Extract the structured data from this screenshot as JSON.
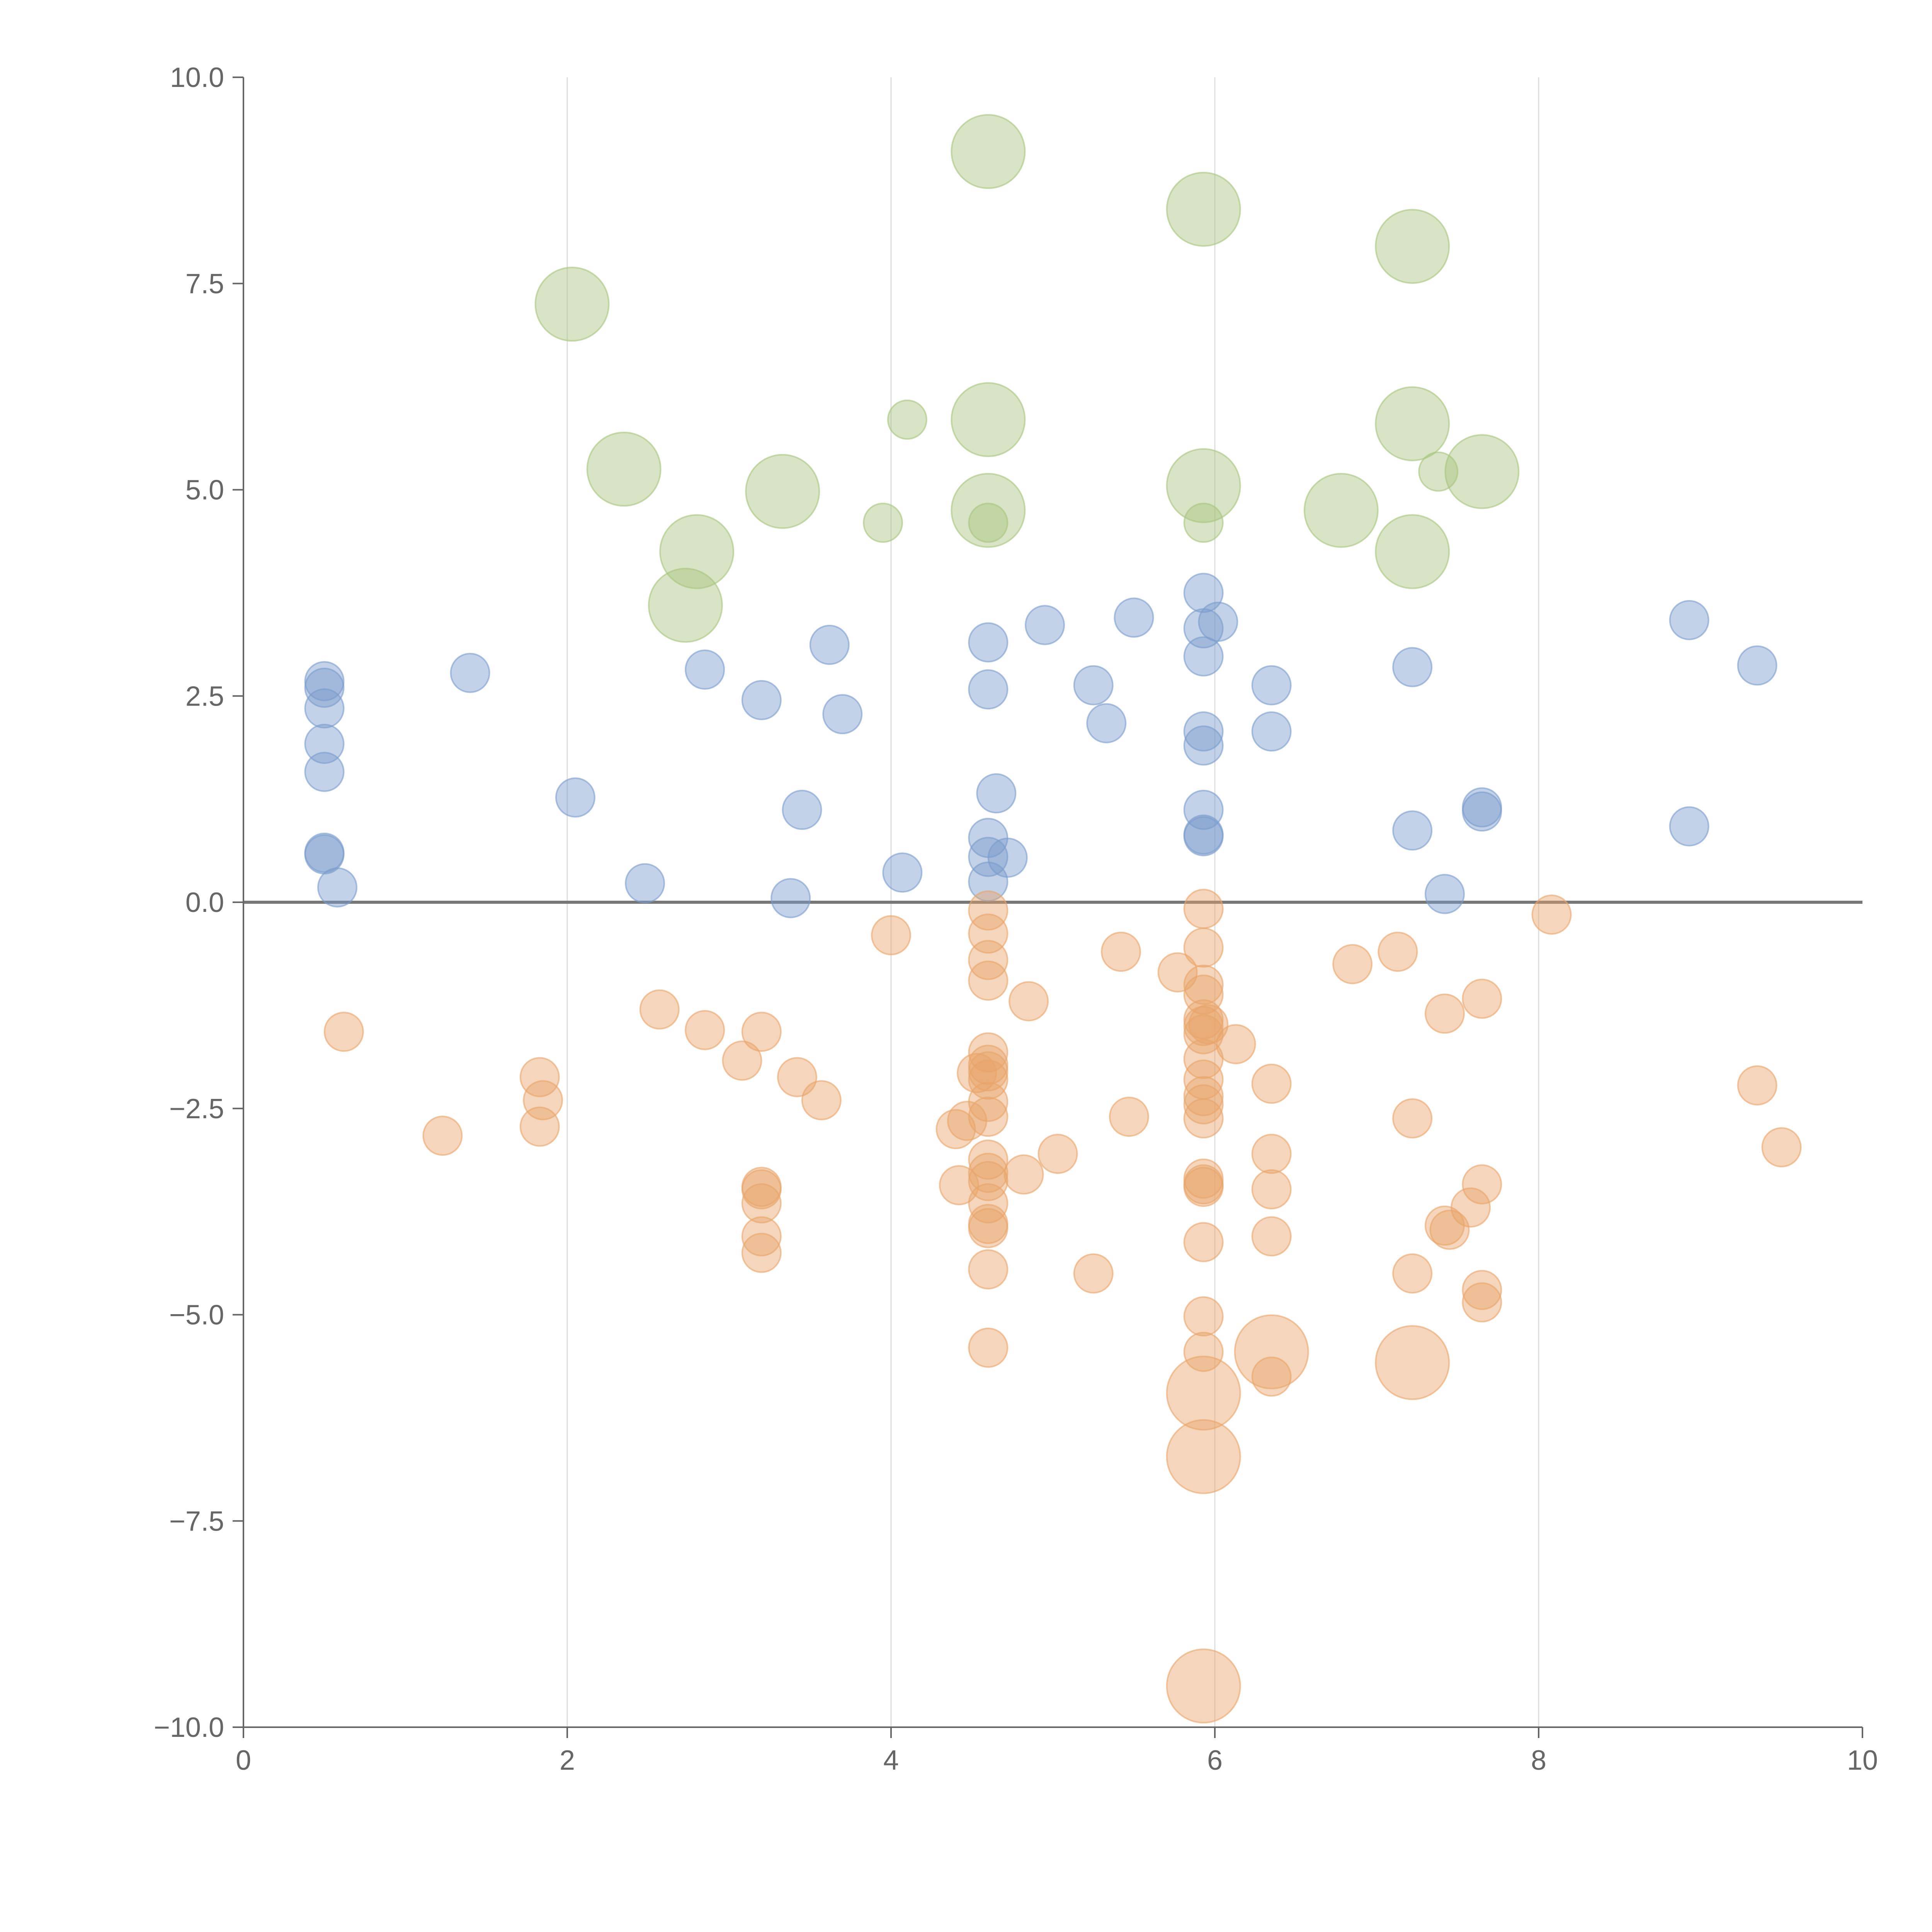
{
  "chart_data": {
    "type": "scatter",
    "title": "",
    "xlabel": "",
    "ylabel": "",
    "xlim": [
      0,
      10
    ],
    "ylim": [
      -10,
      10
    ],
    "x_ticks": [
      0,
      2,
      4,
      6,
      8,
      10
    ],
    "x_tick_labels": [
      "0",
      "2",
      "4",
      "6",
      "8",
      "10"
    ],
    "y_ticks": [
      -10,
      -7.5,
      -5,
      -2.5,
      0,
      2.5,
      5,
      7.5,
      10
    ],
    "y_tick_labels": [
      "−10.0",
      "−7.5",
      "−5.0",
      "−2.5",
      "0.0",
      "2.5",
      "5.0",
      "7.5",
      "10.0"
    ],
    "vertical_grid": true,
    "horizontal_grid": false,
    "reference_line_y": 0,
    "bubble_sizes": "small, medium, large",
    "series": [
      {
        "color": "#a9c47f",
        "points": [
          [
            4.6,
            9.1,
            3
          ],
          [
            5.93,
            8.4,
            3
          ],
          [
            7.22,
            7.95,
            3
          ],
          [
            2.03,
            7.25,
            3
          ],
          [
            4.6,
            5.85,
            3
          ],
          [
            7.22,
            5.8,
            3
          ],
          [
            2.35,
            5.25,
            3
          ],
          [
            7.65,
            5.22,
            3
          ],
          [
            3.33,
            4.98,
            3
          ],
          [
            5.93,
            5.05,
            3
          ],
          [
            4.6,
            4.75,
            3
          ],
          [
            6.78,
            4.75,
            3
          ],
          [
            2.8,
            4.25,
            3
          ],
          [
            7.22,
            4.25,
            3
          ],
          [
            2.73,
            3.6,
            3
          ],
          [
            4.1,
            5.85,
            1
          ],
          [
            3.95,
            4.6,
            1
          ],
          [
            4.6,
            4.6,
            1
          ],
          [
            5.93,
            4.6,
            1
          ],
          [
            7.38,
            5.22,
            1
          ]
        ]
      },
      {
        "color": "#7b9ccc",
        "points": [
          [
            0.5,
            2.68,
            1
          ],
          [
            0.5,
            2.6,
            1
          ],
          [
            0.5,
            2.35,
            1
          ],
          [
            0.5,
            1.92,
            1
          ],
          [
            0.5,
            1.58,
            1
          ],
          [
            0.5,
            0.58,
            1
          ],
          [
            0.5,
            0.6,
            1
          ],
          [
            0.58,
            0.18,
            1
          ],
          [
            1.4,
            2.78,
            1
          ],
          [
            2.05,
            1.27,
            1
          ],
          [
            2.48,
            0.23,
            1
          ],
          [
            2.85,
            2.82,
            1
          ],
          [
            3.2,
            2.45,
            1
          ],
          [
            3.38,
            0.05,
            1
          ],
          [
            3.45,
            1.12,
            1
          ],
          [
            3.62,
            3.12,
            1
          ],
          [
            3.7,
            2.28,
            1
          ],
          [
            4.07,
            0.36,
            1
          ],
          [
            4.6,
            3.15,
            1
          ],
          [
            4.6,
            2.58,
            1
          ],
          [
            4.65,
            1.32,
            1
          ],
          [
            4.6,
            0.78,
            1
          ],
          [
            4.6,
            0.55,
            1
          ],
          [
            4.72,
            0.54,
            1
          ],
          [
            4.6,
            0.25,
            1
          ],
          [
            4.95,
            3.36,
            1
          ],
          [
            5.25,
            2.63,
            1
          ],
          [
            5.33,
            2.17,
            1
          ],
          [
            5.5,
            3.45,
            1
          ],
          [
            5.93,
            3.75,
            1
          ],
          [
            5.93,
            3.32,
            1
          ],
          [
            6.02,
            3.4,
            1
          ],
          [
            5.93,
            2.98,
            1
          ],
          [
            5.93,
            2.07,
            1
          ],
          [
            5.93,
            1.9,
            1
          ],
          [
            5.93,
            1.12,
            1
          ],
          [
            5.93,
            0.8,
            1
          ],
          [
            5.93,
            0.82,
            1
          ],
          [
            6.35,
            2.63,
            1
          ],
          [
            6.35,
            2.07,
            1
          ],
          [
            7.22,
            2.85,
            1
          ],
          [
            7.22,
            0.87,
            1
          ],
          [
            7.42,
            0.1,
            1
          ],
          [
            7.65,
            1.15,
            1
          ],
          [
            7.65,
            1.1,
            1
          ],
          [
            8.93,
            3.42,
            1
          ],
          [
            8.93,
            0.92,
            1
          ],
          [
            9.35,
            2.87,
            1
          ]
        ]
      },
      {
        "color": "#e8a56b",
        "points": [
          [
            0.62,
            -1.57,
            1
          ],
          [
            1.23,
            -2.83,
            1
          ],
          [
            1.83,
            -2.12,
            1
          ],
          [
            1.85,
            -2.4,
            1
          ],
          [
            1.83,
            -2.72,
            1
          ],
          [
            2.57,
            -1.3,
            1
          ],
          [
            2.85,
            -1.55,
            1
          ],
          [
            3.08,
            -1.92,
            1
          ],
          [
            3.2,
            -1.57,
            1
          ],
          [
            3.42,
            -2.12,
            1
          ],
          [
            3.57,
            -2.4,
            1
          ],
          [
            3.2,
            -3.45,
            1
          ],
          [
            3.2,
            -3.48,
            1
          ],
          [
            3.2,
            -3.65,
            1
          ],
          [
            3.2,
            -4.05,
            1
          ],
          [
            3.2,
            -4.25,
            1
          ],
          [
            4.0,
            -0.4,
            1
          ],
          [
            4.6,
            -0.1,
            1
          ],
          [
            4.6,
            -0.38,
            1
          ],
          [
            4.6,
            -0.7,
            1
          ],
          [
            4.6,
            -0.95,
            1
          ],
          [
            4.85,
            -1.2,
            1
          ],
          [
            4.6,
            -1.82,
            1
          ],
          [
            4.6,
            -1.97,
            1
          ],
          [
            4.6,
            -2.05,
            1
          ],
          [
            4.53,
            -2.07,
            1
          ],
          [
            4.6,
            -2.15,
            1
          ],
          [
            4.6,
            -2.42,
            1
          ],
          [
            4.6,
            -2.6,
            1
          ],
          [
            4.47,
            -2.65,
            1
          ],
          [
            4.4,
            -2.75,
            1
          ],
          [
            4.6,
            -3.12,
            1
          ],
          [
            4.6,
            -3.28,
            1
          ],
          [
            4.6,
            -3.38,
            1
          ],
          [
            4.6,
            -3.65,
            1
          ],
          [
            4.6,
            -3.9,
            1
          ],
          [
            4.6,
            -3.95,
            1
          ],
          [
            4.42,
            -3.43,
            1
          ],
          [
            4.82,
            -3.3,
            1
          ],
          [
            5.03,
            -3.05,
            1
          ],
          [
            4.6,
            -4.45,
            1
          ],
          [
            4.6,
            -5.4,
            1
          ],
          [
            5.25,
            -4.5,
            1
          ],
          [
            5.42,
            -0.6,
            1
          ],
          [
            5.47,
            -2.6,
            1
          ],
          [
            5.77,
            -0.85,
            1
          ],
          [
            5.93,
            -0.08,
            1
          ],
          [
            5.93,
            -0.55,
            1
          ],
          [
            5.93,
            -1.0,
            1
          ],
          [
            5.93,
            -1.12,
            1
          ],
          [
            5.93,
            -1.42,
            1
          ],
          [
            5.93,
            -1.5,
            1
          ],
          [
            5.96,
            -1.48,
            1
          ],
          [
            5.93,
            -1.6,
            1
          ],
          [
            5.93,
            -1.9,
            1
          ],
          [
            5.93,
            -2.15,
            1
          ],
          [
            5.93,
            -2.35,
            1
          ],
          [
            5.93,
            -2.45,
            1
          ],
          [
            5.93,
            -2.62,
            1
          ],
          [
            6.13,
            -1.72,
            1
          ],
          [
            5.93,
            -3.35,
            1
          ],
          [
            5.93,
            -3.42,
            1
          ],
          [
            5.93,
            -3.45,
            1
          ],
          [
            5.93,
            -4.12,
            1
          ],
          [
            5.93,
            -5.02,
            1
          ],
          [
            5.93,
            -5.45,
            1
          ],
          [
            6.35,
            -2.2,
            1
          ],
          [
            6.35,
            -3.05,
            1
          ],
          [
            6.35,
            -3.48,
            1
          ],
          [
            6.35,
            -4.05,
            1
          ],
          [
            6.35,
            -5.75,
            1
          ],
          [
            6.85,
            -0.75,
            1
          ],
          [
            7.13,
            -0.6,
            1
          ],
          [
            7.22,
            -2.62,
            1
          ],
          [
            7.22,
            -4.5,
            1
          ],
          [
            7.42,
            -1.35,
            1
          ],
          [
            7.42,
            -3.92,
            1
          ],
          [
            7.45,
            -3.97,
            1
          ],
          [
            7.58,
            -3.7,
            1
          ],
          [
            7.65,
            -1.17,
            1
          ],
          [
            7.65,
            -3.42,
            1
          ],
          [
            7.65,
            -4.7,
            1
          ],
          [
            7.65,
            -4.85,
            1
          ],
          [
            8.08,
            -0.15,
            1
          ],
          [
            9.35,
            -2.22,
            1
          ],
          [
            9.5,
            -2.97,
            1
          ],
          [
            6.35,
            -5.45,
            3
          ],
          [
            7.22,
            -5.58,
            3
          ],
          [
            5.93,
            -5.95,
            3
          ],
          [
            5.93,
            -6.72,
            3
          ],
          [
            5.93,
            -9.5,
            3
          ]
        ]
      }
    ]
  }
}
